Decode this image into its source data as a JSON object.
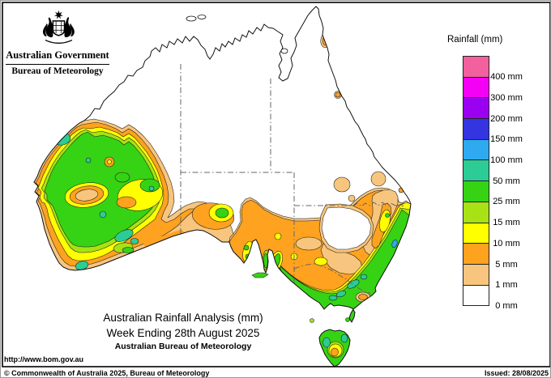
{
  "header": {
    "government": "Australian Government",
    "bureau": "Bureau of Meteorology"
  },
  "legend": {
    "title": "Rainfall (mm)",
    "entries": [
      {
        "label": "400 mm",
        "color": "#F2609E"
      },
      {
        "label": "300 mm",
        "color": "#F400F4"
      },
      {
        "label": "200 mm",
        "color": "#9B00F0"
      },
      {
        "label": "150 mm",
        "color": "#3434E0"
      },
      {
        "label": "100 mm",
        "color": "#2FA9F0"
      },
      {
        "label": "50 mm",
        "color": "#2BCC96"
      },
      {
        "label": "25 mm",
        "color": "#36D314"
      },
      {
        "label": "15 mm",
        "color": "#A8E214"
      },
      {
        "label": "10 mm",
        "color": "#FFFF00"
      },
      {
        "label": "5 mm",
        "color": "#FFA21F"
      },
      {
        "label": "1 mm",
        "color": "#F7C57D"
      },
      {
        "label": "0 mm",
        "color": "#FFFFFF"
      }
    ]
  },
  "map": {
    "title_line1": "Australian Rainfall Analysis (mm)",
    "title_line2": "Week Ending 28th August 2025",
    "title_line3": "Australian Bureau of Meteorology",
    "url": "http://www.bom.gov.au"
  },
  "footer": {
    "copyright": "© Commonwealth of Australia 2025, Bureau of Meteorology",
    "issued": "Issued: 28/08/2025"
  },
  "palette": {
    "tan": "#F7C57D",
    "orange": "#FFA21F",
    "yellow": "#FFFF00",
    "yg": "#A8E214",
    "green": "#36D314",
    "teal": "#2BCC96",
    "sky": "#2FA9F0",
    "blue": "#3434E0",
    "purple": "#9B00F0",
    "magenta": "#F400F4",
    "pink": "#F2609E"
  }
}
